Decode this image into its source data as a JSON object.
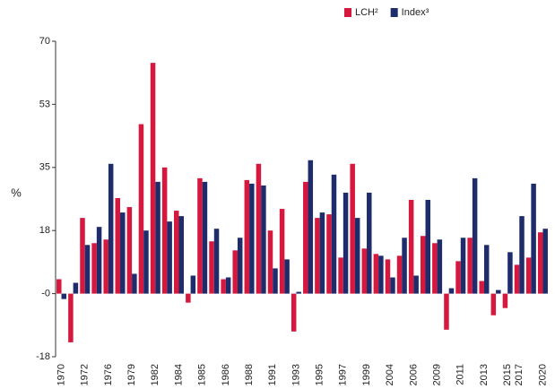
{
  "chart_data": {
    "type": "bar",
    "y_label": "%",
    "categories": [
      "1970",
      null,
      "1972",
      null,
      "1976",
      null,
      "1979",
      null,
      "1982",
      null,
      "1984",
      null,
      "1985",
      null,
      "1986",
      null,
      "1988",
      null,
      "1991",
      null,
      "1993",
      null,
      "1995",
      null,
      "1997",
      null,
      "1999",
      null,
      "2004",
      null,
      "2006",
      null,
      "2009",
      null,
      "2011",
      null,
      "2013",
      null,
      "2015",
      "2017",
      null,
      "2020"
    ],
    "series": [
      {
        "name": "LCH²",
        "color": "#d6183f",
        "values": [
          4,
          -13.5,
          21,
          14,
          15,
          26.5,
          24,
          47,
          64,
          35,
          23,
          -2.5,
          32,
          14.5,
          4,
          12,
          31.5,
          36,
          17.5,
          23.5,
          -10.5,
          31,
          21,
          22,
          10,
          36,
          12.5,
          11,
          9.5,
          10.5,
          26,
          16,
          14,
          -10,
          9,
          15.5,
          3.5,
          -6,
          -4,
          8,
          10,
          17
        ]
      },
      {
        "name": "Index³",
        "color": "#1f2c6c",
        "values": [
          -1.5,
          3,
          13.5,
          18.5,
          36,
          22.5,
          5.5,
          17.5,
          31,
          20,
          21.5,
          5,
          31,
          18,
          4.5,
          15.5,
          30.5,
          30,
          7,
          9.5,
          0.5,
          37,
          22.5,
          33,
          28,
          21,
          28,
          10.5,
          4.5,
          15.5,
          5,
          26,
          15,
          1.5,
          15.5,
          32,
          13.5,
          1,
          11.5,
          21.5,
          30.5,
          18
        ]
      }
    ],
    "ylim": [
      -17.5,
      70
    ],
    "yticks": [
      70,
      {
        "value": 52.5,
        "label": "53"
      },
      35,
      {
        "value": 17.5,
        "label": "18"
      },
      {
        "value": 0,
        "label": "-0"
      },
      {
        "value": -17.5,
        "label": "-18"
      }
    ],
    "legend": "top-right"
  }
}
